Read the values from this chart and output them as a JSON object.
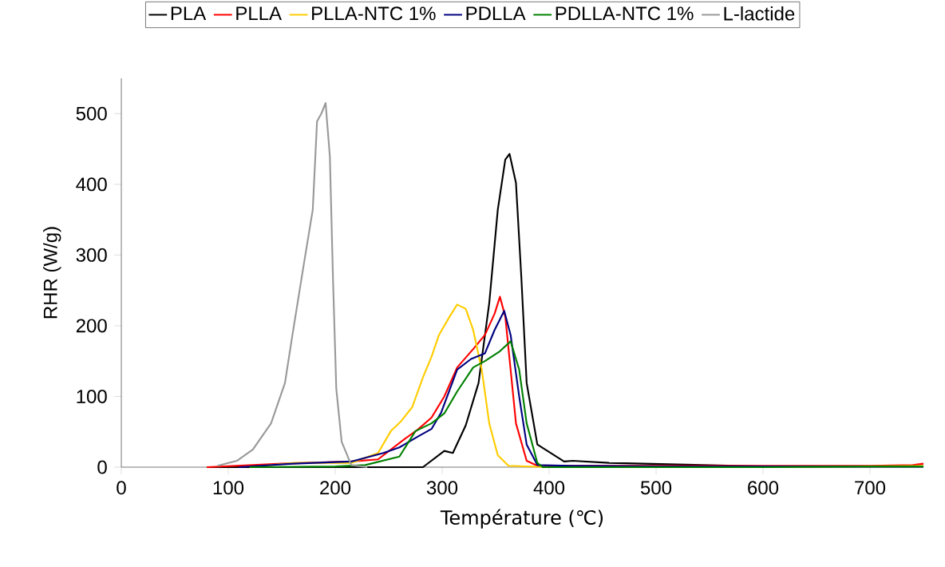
{
  "chart_data": {
    "type": "line",
    "xlabel": "Température (℃)",
    "ylabel": "RHR (W/g)",
    "xlim": [
      0,
      750
    ],
    "ylim": [
      0,
      550
    ],
    "xticks": [
      0,
      100,
      200,
      300,
      400,
      500,
      600,
      700
    ],
    "yticks": [
      0,
      100,
      200,
      300,
      400,
      500
    ],
    "legend": "top",
    "series": [
      {
        "name": "PLA",
        "color": "#000000",
        "x": [
          80,
          150,
          250,
          282,
          302,
          310,
          322,
          334,
          344,
          352,
          359,
          363,
          369,
          374,
          379,
          389,
          414,
          422,
          456,
          500,
          550,
          600,
          700,
          750
        ],
        "values": [
          0,
          0,
          0,
          0,
          23,
          20,
          59,
          119,
          232,
          364,
          435,
          443,
          402,
          269,
          119,
          32,
          8,
          9,
          6,
          null,
          null,
          1,
          1,
          1
        ]
      },
      {
        "name": "PLLA",
        "color": "#ff0000",
        "x": [
          80,
          150,
          215,
          240,
          265,
          277,
          290,
          302,
          314,
          329,
          340,
          349,
          354,
          359,
          364,
          369,
          379,
          389,
          500,
          600,
          700,
          740,
          750
        ],
        "values": [
          0,
          5,
          8,
          11,
          40,
          53,
          70,
          100,
          141,
          167,
          187,
          217,
          241,
          213,
          138,
          62,
          9,
          2,
          2,
          2,
          2,
          3,
          5
        ]
      },
      {
        "name": "PLLA-NTC 1%",
        "color": "#ffcc00",
        "x": [
          120,
          160,
          215,
          240,
          252,
          261,
          272,
          282,
          290,
          297,
          307,
          314,
          322,
          329,
          337,
          344,
          352,
          362,
          400,
          500,
          600,
          700,
          750
        ],
        "values": [
          0,
          6,
          6,
          20,
          51,
          64,
          85,
          127,
          156,
          187,
          213,
          230,
          224,
          194,
          138,
          62,
          17,
          2,
          0,
          0,
          0,
          null,
          2
        ]
      },
      {
        "name": "PDLLA",
        "color": "#000080",
        "x": [
          110,
          160,
          215,
          245,
          260,
          277,
          290,
          299,
          314,
          327,
          340,
          349,
          358,
          364,
          372,
          379,
          389,
          420,
          500,
          600,
          700,
          750
        ],
        "values": [
          0,
          5,
          8,
          20,
          28,
          43,
          54,
          77,
          138,
          153,
          161,
          194,
          221,
          187,
          100,
          32,
          3,
          2,
          1,
          1,
          1,
          1
        ]
      },
      {
        "name": "PDLLA-NTC 1%",
        "color": "#008000",
        "x": [
          120,
          200,
          228,
          260,
          275,
          290,
          302,
          314,
          329,
          340,
          354,
          364,
          372,
          379,
          389,
          394,
          500,
          600,
          700,
          750
        ],
        "values": [
          0,
          1,
          3,
          15,
          51,
          62,
          76,
          107,
          141,
          150,
          164,
          178,
          138,
          62,
          6,
          0,
          0,
          0,
          1,
          1
        ]
      },
      {
        "name": "L-lactide",
        "color": "#999999",
        "x": [
          90,
          108,
          123,
          140,
          153,
          160,
          170,
          179,
          183,
          187,
          191,
          195,
          198,
          201,
          206,
          215,
          230
        ],
        "values": [
          2,
          9,
          25,
          62,
          119,
          187,
          281,
          364,
          489,
          500,
          515,
          439,
          262,
          111,
          36,
          3,
          0
        ]
      }
    ]
  }
}
